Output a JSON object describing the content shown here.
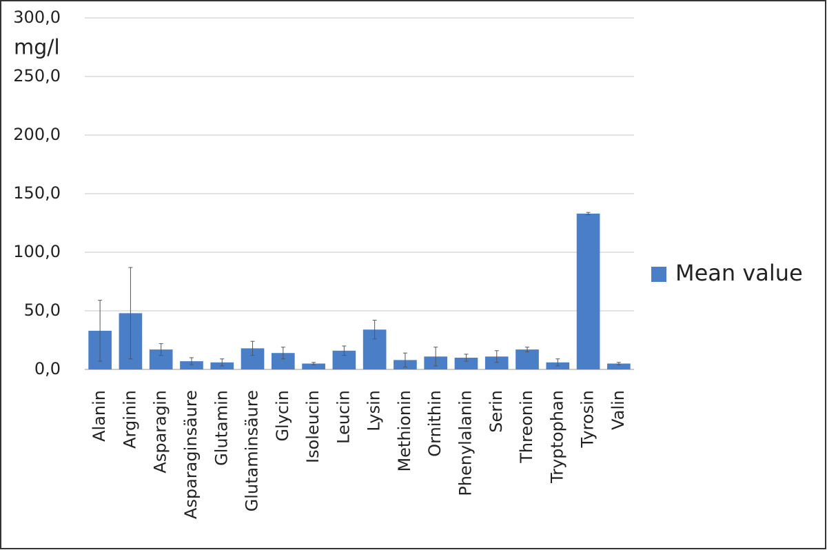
{
  "chart_data": {
    "type": "bar",
    "y_label": "mg/l",
    "categories": [
      "Alanin",
      "Arginin",
      "Asparagin",
      "Asparaginsäure",
      "Glutamin",
      "Glutaminsäure",
      "Glycin",
      "Isoleucin",
      "Leucin",
      "Lysin",
      "Methionin",
      "Ornithin",
      "Phenylalanin",
      "Serin",
      "Threonin",
      "Tryptophan",
      "Tyrosin",
      "Valin"
    ],
    "series": [
      {
        "name": "Mean value",
        "color": "#4a7ec6",
        "values": [
          33,
          48,
          17,
          7,
          6,
          18,
          14,
          5,
          16,
          34,
          8,
          11,
          10,
          11,
          17,
          6,
          133,
          5
        ],
        "errors": [
          26,
          39,
          5,
          3,
          3,
          6,
          5,
          1,
          4,
          8,
          6,
          8,
          3,
          5,
          2,
          3,
          1,
          1
        ]
      }
    ],
    "ylim": [
      0,
      300
    ],
    "yticks": [
      {
        "value": 0,
        "label": "0,0"
      },
      {
        "value": 50,
        "label": "50,0"
      },
      {
        "value": 100,
        "label": "100,0"
      },
      {
        "value": 150,
        "label": "150,0"
      },
      {
        "value": 200,
        "label": "200,0"
      },
      {
        "value": 250,
        "label": "250,0"
      },
      {
        "value": 300,
        "label": "300,0"
      }
    ],
    "grid": true,
    "legend": "right"
  }
}
